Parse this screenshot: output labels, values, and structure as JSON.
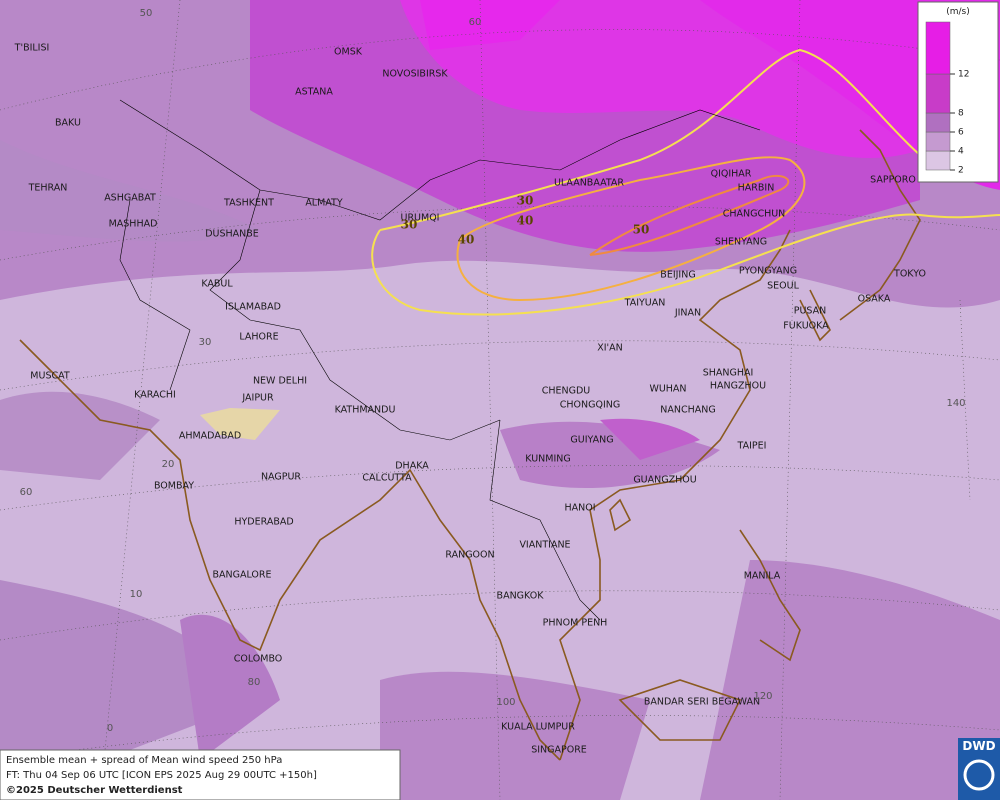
{
  "map": {
    "legend": {
      "unit": "(m/s)",
      "ticks": [
        2,
        4,
        6,
        8,
        12
      ]
    },
    "cities": [
      "OMSK",
      "NOVOSIBIRSK",
      "ASTANA",
      "T'BILISI",
      "BAKU",
      "TEHRAN",
      "ASHGABAT",
      "MASHHAD",
      "TASHKENT",
      "ALMATY",
      "DUSHANBE",
      "URUMQI",
      "ULAANBAATAR",
      "QIQIHAR",
      "HARBIN",
      "CHANGCHUN",
      "SHENYANG",
      "SAPPORO",
      "BEIJING",
      "PYONGYANG",
      "SEOUL",
      "TOKYO",
      "OSAKA",
      "PUSAN",
      "FUKUOKA",
      "TAIYUAN",
      "JINAN",
      "KABUL",
      "ISLAMABAD",
      "LAHORE",
      "XI'AN",
      "NEW DELHI",
      "JAIPUR",
      "KARACHI",
      "MUSCAT",
      "KATHMANDU",
      "AHMADABAD",
      "CHENGDU",
      "CHONGQING",
      "WUHAN",
      "SHANGHAI",
      "HANGZHOU",
      "NANCHANG",
      "GUIYANG",
      "TAIPEI",
      "KUNMING",
      "DHAKA",
      "CALCUTTA",
      "NAGPUR",
      "BOMBAY",
      "GUANGZHOU",
      "HANOI",
      "HYDERABAD",
      "RANGOON",
      "VIANTIANE",
      "MANILA",
      "BANGALORE",
      "BANGKOK",
      "PHNOM PENH",
      "COLOMBO",
      "BANDAR SERI BEGAWAN",
      "KUALA LUMPUR",
      "SINGAPORE"
    ],
    "contour_labels": [
      30,
      30,
      40,
      40,
      50
    ],
    "grid_labels": [
      50,
      60,
      30,
      20,
      10,
      0,
      60,
      80,
      100,
      120,
      140
    ],
    "footer": {
      "line1": "Ensemble mean + spread of Mean wind speed 250 hPa",
      "line2": "FT: Thu 04 Sep 06 UTC [ICON EPS 2025 Aug 29 00UTC +150h]",
      "line3": "©2025 Deutscher Wetterdienst"
    },
    "logo": "DWD"
  }
}
